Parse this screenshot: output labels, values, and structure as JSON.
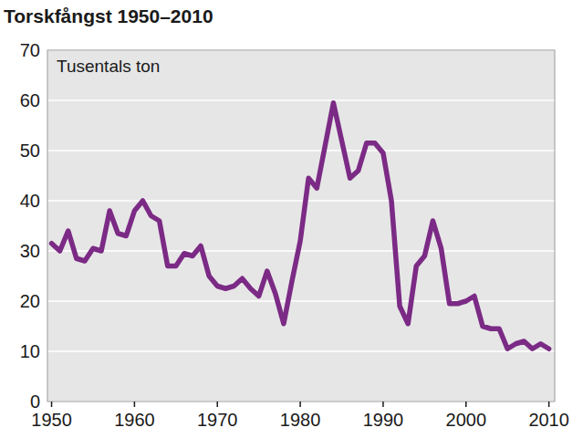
{
  "chart_data": {
    "type": "line",
    "title": "Torskfångst 1950–2010",
    "y_label": "Tusentals ton",
    "x": [
      1950,
      1951,
      1952,
      1953,
      1954,
      1955,
      1956,
      1957,
      1958,
      1959,
      1960,
      1961,
      1962,
      1963,
      1964,
      1965,
      1966,
      1967,
      1968,
      1969,
      1970,
      1971,
      1972,
      1973,
      1974,
      1975,
      1976,
      1977,
      1978,
      1979,
      1980,
      1981,
      1982,
      1983,
      1984,
      1985,
      1986,
      1987,
      1988,
      1989,
      1990,
      1991,
      1992,
      1993,
      1994,
      1995,
      1996,
      1997,
      1998,
      1999,
      2000,
      2001,
      2002,
      2003,
      2004,
      2005,
      2006,
      2007,
      2008,
      2009,
      2010
    ],
    "values": [
      31.5,
      30,
      34,
      28.5,
      28,
      30.5,
      30,
      38,
      33.5,
      33,
      38,
      40,
      37,
      36,
      27,
      27,
      29.5,
      29,
      31,
      25,
      23,
      22.5,
      23,
      24.5,
      22.5,
      21,
      26,
      21.5,
      15.5,
      24,
      32,
      44.5,
      42.5,
      51,
      59.5,
      52,
      44.5,
      46,
      51.5,
      51.5,
      49.5,
      40,
      19,
      15.5,
      27,
      29,
      36,
      30.5,
      19.5,
      19.5,
      20,
      21,
      15,
      14.5,
      14.5,
      10.5,
      11.5,
      12,
      10.5,
      11.5,
      10.5
    ],
    "color": "#7b2a85",
    "line_style": "solid",
    "grid": true,
    "xlim": [
      1949.5,
      2010.7
    ],
    "xticks": [
      1950,
      1960,
      1970,
      1980,
      1990,
      2000,
      2010
    ],
    "ylim": [
      0,
      70
    ],
    "yticks": [
      0,
      10,
      20,
      30,
      40,
      50,
      60,
      70
    ]
  }
}
